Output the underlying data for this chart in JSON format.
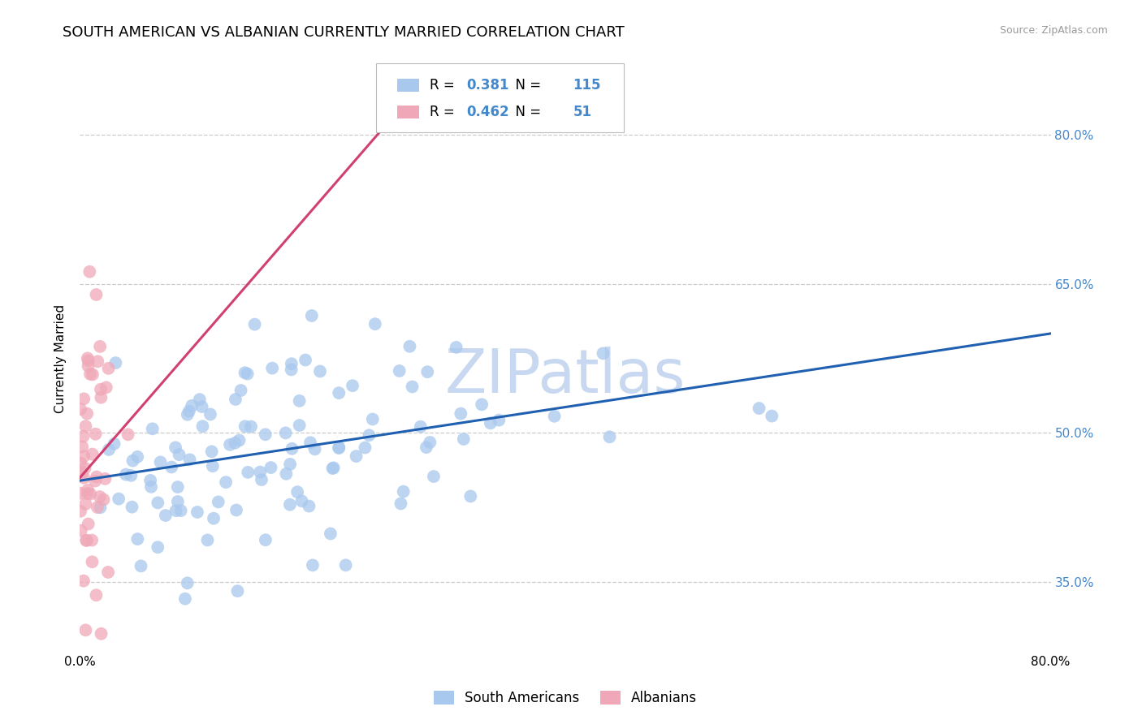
{
  "title": "SOUTH AMERICAN VS ALBANIAN CURRENTLY MARRIED CORRELATION CHART",
  "source_text": "Source: ZipAtlas.com",
  "ylabel": "Currently Married",
  "xlim": [
    0.0,
    0.8
  ],
  "ylim": [
    0.28,
    0.87
  ],
  "yticks": [
    0.35,
    0.5,
    0.65,
    0.8
  ],
  "ytick_labels": [
    "35.0%",
    "50.0%",
    "65.0%",
    "80.0%"
  ],
  "blue_R": 0.381,
  "blue_N": 115,
  "pink_R": 0.462,
  "pink_N": 51,
  "blue_color": "#A8C8EE",
  "pink_color": "#F0A8B8",
  "blue_line_color": "#2060B0",
  "pink_line_color": "#D04070",
  "watermark": "ZIPatlas",
  "watermark_color": "#C8D8F0",
  "legend_label_blue": "South Americans",
  "legend_label_pink": "Albanians",
  "title_fontsize": 13,
  "axis_label_fontsize": 11,
  "tick_fontsize": 11,
  "blue_seed": 42,
  "pink_seed": 7,
  "blue_line_x0": 0.0,
  "blue_line_y0": 0.452,
  "blue_line_x1": 0.8,
  "blue_line_y1": 0.6,
  "pink_line_x0": 0.0,
  "pink_line_y0": 0.455,
  "pink_line_x1": 0.27,
  "pink_line_y1": 0.835,
  "tick_color": "#4488CC"
}
